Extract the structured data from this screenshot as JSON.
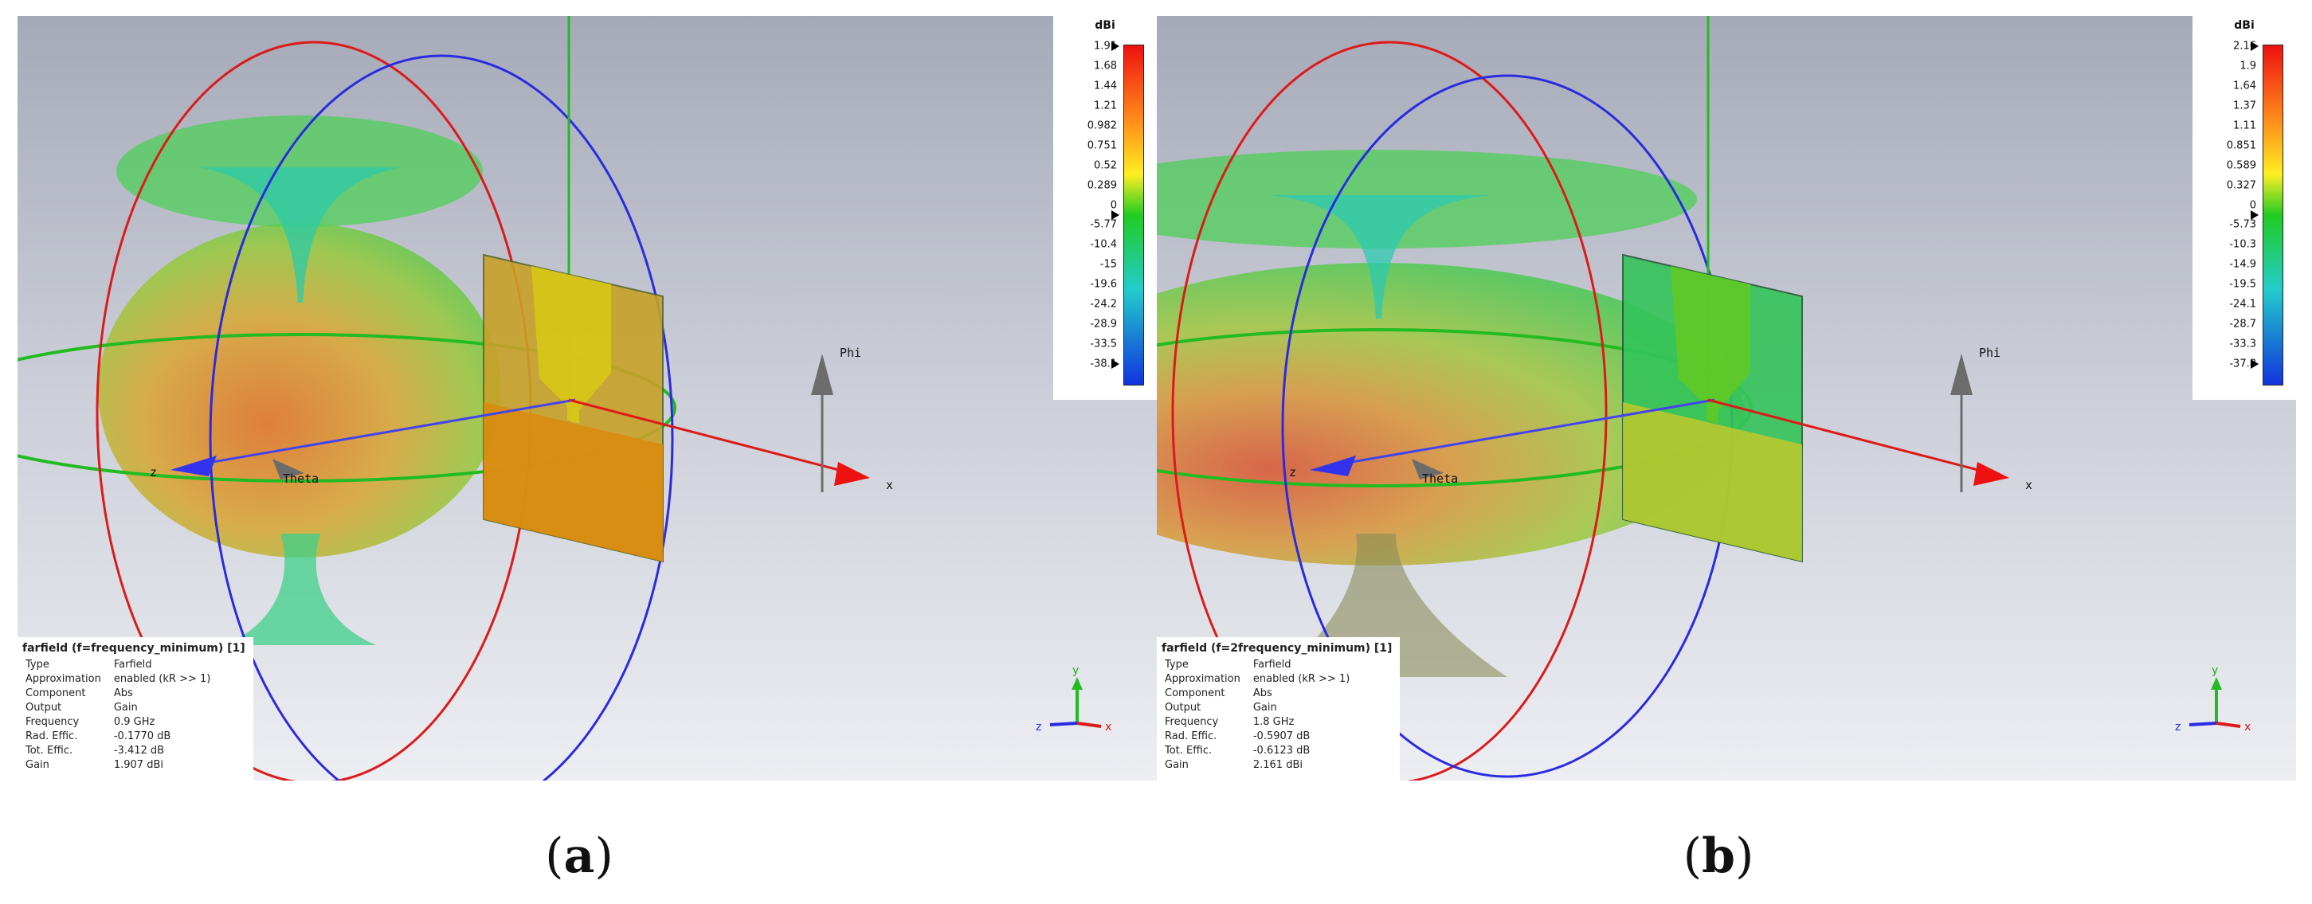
{
  "panels": [
    {
      "caption_letter": "a",
      "legend": {
        "unit": "dBi",
        "ticks": [
          "1.91",
          "1.68",
          "1.44",
          "1.21",
          "0.982",
          "0.751",
          "0.52",
          "0.289",
          "0",
          "-5.77",
          "-10.4",
          "-15",
          "-19.6",
          "-24.2",
          "-28.9",
          "-33.5",
          "-38.1"
        ]
      },
      "info": {
        "title": "farfield (f=frequency_minimum) [1]",
        "rows": [
          [
            "Type",
            "Farfield"
          ],
          [
            "Approximation",
            "enabled (kR >> 1)"
          ],
          [
            "Component",
            "Abs"
          ],
          [
            "Output",
            "Gain"
          ],
          [
            "Frequency",
            "0.9 GHz"
          ],
          [
            "Rad. Effic.",
            "-0.1770 dB"
          ],
          [
            "Tot. Effic.",
            "-3.412 dB"
          ],
          [
            "Gain",
            "1.907 dBi"
          ]
        ]
      },
      "axes": {
        "z": "z",
        "x": "x",
        "theta": "Theta",
        "phi": "Phi",
        "tri_y": "y",
        "tri_z": "z",
        "tri_x": "x"
      }
    },
    {
      "caption_letter": "b",
      "legend": {
        "unit": "dBi",
        "ticks": [
          "2.16",
          "1.9",
          "1.64",
          "1.37",
          "1.11",
          "0.851",
          "0.589",
          "0.327",
          "0",
          "-5.73",
          "-10.3",
          "-14.9",
          "-19.5",
          "-24.1",
          "-28.7",
          "-33.3",
          "-37.8"
        ]
      },
      "info": {
        "title": "farfield (f=2frequency_minimum) [1]",
        "rows": [
          [
            "Type",
            "Farfield"
          ],
          [
            "Approximation",
            "enabled (kR >> 1)"
          ],
          [
            "Component",
            "Abs"
          ],
          [
            "Output",
            "Gain"
          ],
          [
            "Frequency",
            "1.8 GHz"
          ],
          [
            "Rad. Effic.",
            "-0.5907 dB"
          ],
          [
            "Tot. Effic.",
            "-0.6123 dB"
          ],
          [
            "Gain",
            "2.161 dBi"
          ]
        ]
      },
      "axes": {
        "z": "z",
        "x": "x",
        "theta": "Theta",
        "phi": "Phi",
        "tri_y": "y",
        "tri_z": "z",
        "tri_x": "x"
      }
    }
  ],
  "colors": {
    "scale_top": "#ee1111",
    "scale_orange": "#ff8c1a",
    "scale_yellow": "#ffee22",
    "scale_green": "#22cc22",
    "scale_cyan": "#22cccc",
    "scale_bottom": "#1133dd",
    "red_ring": "#dd1a1a",
    "blue_ring": "#2a2ae0",
    "green_ring": "#22bb22"
  }
}
